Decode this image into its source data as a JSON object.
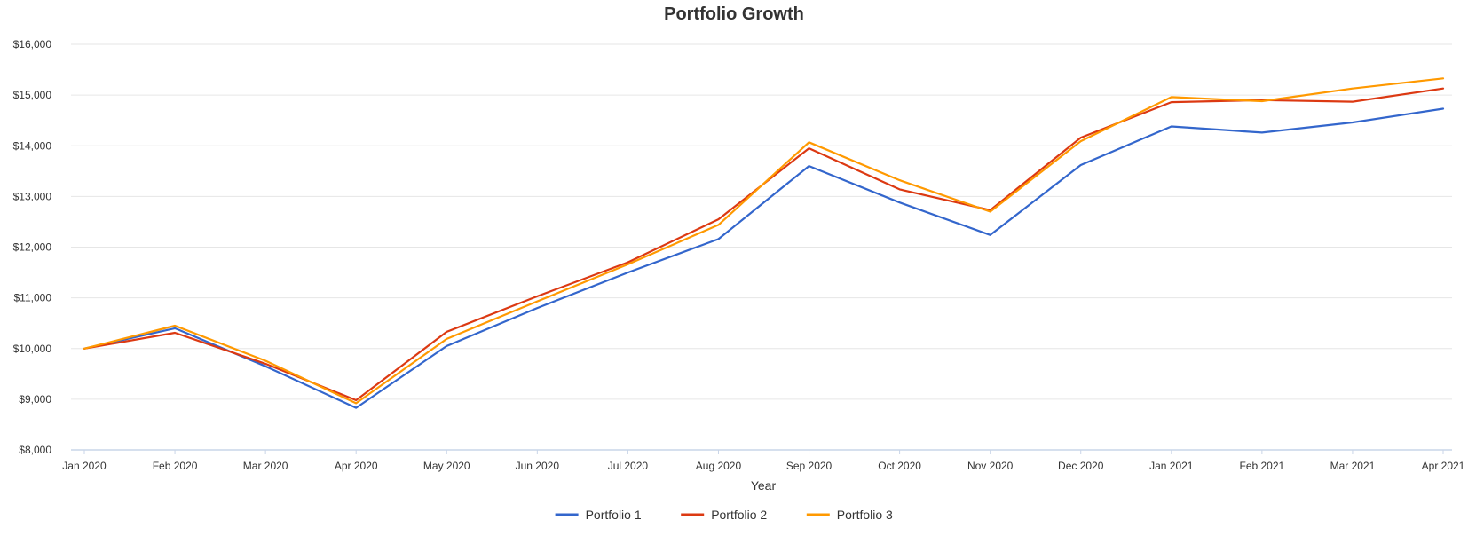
{
  "chart_data": {
    "type": "line",
    "title": "Portfolio Growth",
    "xlabel": "Year",
    "ylabel": "",
    "ylim": [
      8000,
      16000
    ],
    "yticks": [
      "$8,000",
      "$9,000",
      "$10,000",
      "$11,000",
      "$12,000",
      "$13,000",
      "$14,000",
      "$15,000",
      "$16,000"
    ],
    "ytick_values": [
      8000,
      9000,
      10000,
      11000,
      12000,
      13000,
      14000,
      15000,
      16000
    ],
    "grid": true,
    "legend_position": "bottom-center",
    "categories": [
      "Jan 2020",
      "Feb 2020",
      "Mar 2020",
      "Apr 2020",
      "May 2020",
      "Jun 2020",
      "Jul 2020",
      "Aug 2020",
      "Sep 2020",
      "Oct 2020",
      "Nov 2020",
      "Dec 2020",
      "Jan 2021",
      "Feb 2021",
      "Mar 2021",
      "Apr 2021"
    ],
    "series": [
      {
        "name": "Portfolio 1",
        "color": "#3366cc",
        "values": [
          10000,
          10400,
          9650,
          8830,
          10050,
          10800,
          11500,
          12160,
          13600,
          12880,
          12240,
          13620,
          14380,
          14260,
          14460,
          14730
        ]
      },
      {
        "name": "Portfolio 2",
        "color": "#dc3912",
        "values": [
          10000,
          10310,
          9700,
          8980,
          10330,
          11030,
          11700,
          12550,
          13950,
          13140,
          12730,
          14160,
          14860,
          14900,
          14870,
          15130
        ]
      },
      {
        "name": "Portfolio 3",
        "color": "#ff9900",
        "values": [
          10000,
          10450,
          9760,
          8920,
          10190,
          10930,
          11660,
          12440,
          14070,
          13320,
          12700,
          14090,
          14960,
          14880,
          15130,
          15330
        ]
      }
    ]
  }
}
